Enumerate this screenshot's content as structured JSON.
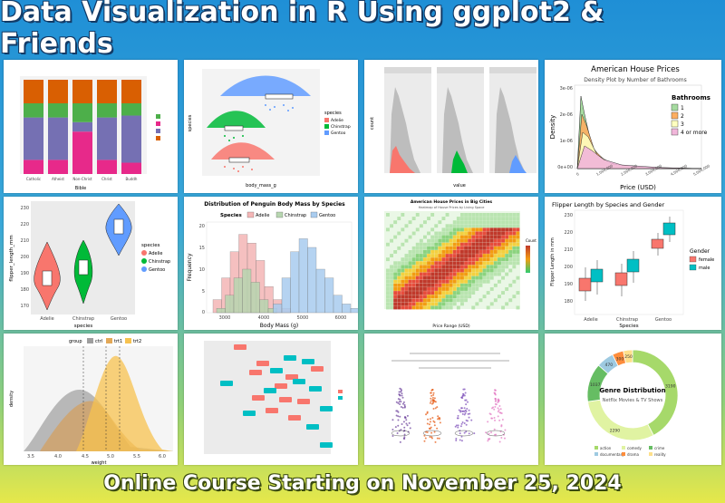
{
  "title": "Data Visualization in R Using ggplot2 & Friends",
  "footer": "Online Course Starting on November 25, 2024",
  "panels": {
    "house_density": {
      "title": "American House Prices",
      "subtitle": "Density Plot by Number of Bathrooms",
      "ylabel": "Density",
      "xlabel": "Price (USD)",
      "yticks": [
        "3e-06",
        "2e-06",
        "1e-06",
        "0e+00"
      ],
      "xticks": [
        "0",
        "1,000,000",
        "2,000,000",
        "3,000,000",
        "4,000,000",
        "5,000,000"
      ],
      "legend_title": "Bathrooms",
      "legend": [
        "1",
        "2",
        "3",
        "4 or more"
      ]
    },
    "penguin_violin": {
      "ylabel": "flipper_length_mm",
      "xlabel": "species",
      "yticks": [
        "230",
        "220",
        "210",
        "200",
        "190",
        "180",
        "170"
      ],
      "categories": [
        "Adelie",
        "Chinstrap",
        "Gentoo"
      ],
      "legend_title": "species",
      "legend": [
        "Adelie",
        "Chinstrap",
        "Gentoo"
      ]
    },
    "penguin_hist": {
      "title": "Distribution of Penguin Body Mass by Species",
      "legend_title": "Species",
      "legend": [
        "Adelie",
        "Chinstrap",
        "Gentoo"
      ],
      "ylabel": "Frequency",
      "xlabel": "Body Mass (g)",
      "yticks": [
        "20",
        "15",
        "10",
        "5",
        "0"
      ],
      "xticks": [
        "3000",
        "4000",
        "5000",
        "6000"
      ]
    },
    "flipper_box": {
      "title": "Flipper Length by Species and Gender",
      "ylabel": "Flipper Length in mm",
      "xlabel": "Species",
      "yticks": [
        "230",
        "220",
        "210",
        "200",
        "190",
        "180"
      ],
      "categories": [
        "Adelie",
        "Chinstrap",
        "Gentoo"
      ],
      "legend_title": "Gender",
      "legend": [
        "female",
        "male"
      ]
    },
    "group_density": {
      "legend_title": "group",
      "legend": [
        "ctrl",
        "trt1",
        "trt2"
      ],
      "ylabel": "density",
      "xlabel": "weight",
      "xticks": [
        "3.5",
        "4.0",
        "4.5",
        "5.0",
        "5.5",
        "6.0"
      ]
    },
    "genre_donut": {
      "title": "Genre Distribution",
      "subtitle": "Netflix Movies & TV Shows",
      "values": [
        "3190",
        "2290",
        "1037",
        "470",
        "300",
        "250"
      ],
      "legend": [
        "action",
        "comedy",
        "crime",
        "documentary",
        "drama",
        "reality"
      ]
    },
    "facet_hist": {
      "ylabel": "count",
      "xlabel": "value"
    },
    "heatmap": {
      "title": "American House Prices in Big Cities",
      "subtitle": "Heatmap of House Prices by Living Space",
      "legend_title": "Count",
      "xlabel": "Price Range (USD)"
    },
    "raincloud": {
      "ylabel": "species",
      "xlabel": "body_mass_g",
      "legend_title": "species",
      "legend": [
        "Adelie",
        "Chinstrap",
        "Gentoo"
      ]
    },
    "stacked_bar": {
      "categories": [
        "Catholic",
        "Atheist",
        "Non-Christ",
        "Christ",
        "Buddh"
      ],
      "xlabel": "Bible"
    }
  },
  "colors": {
    "adelie": "#f8766d",
    "chinstrap": "#00ba38",
    "gentoo": "#619cff",
    "female": "#f8766d",
    "male": "#00bfc4"
  }
}
